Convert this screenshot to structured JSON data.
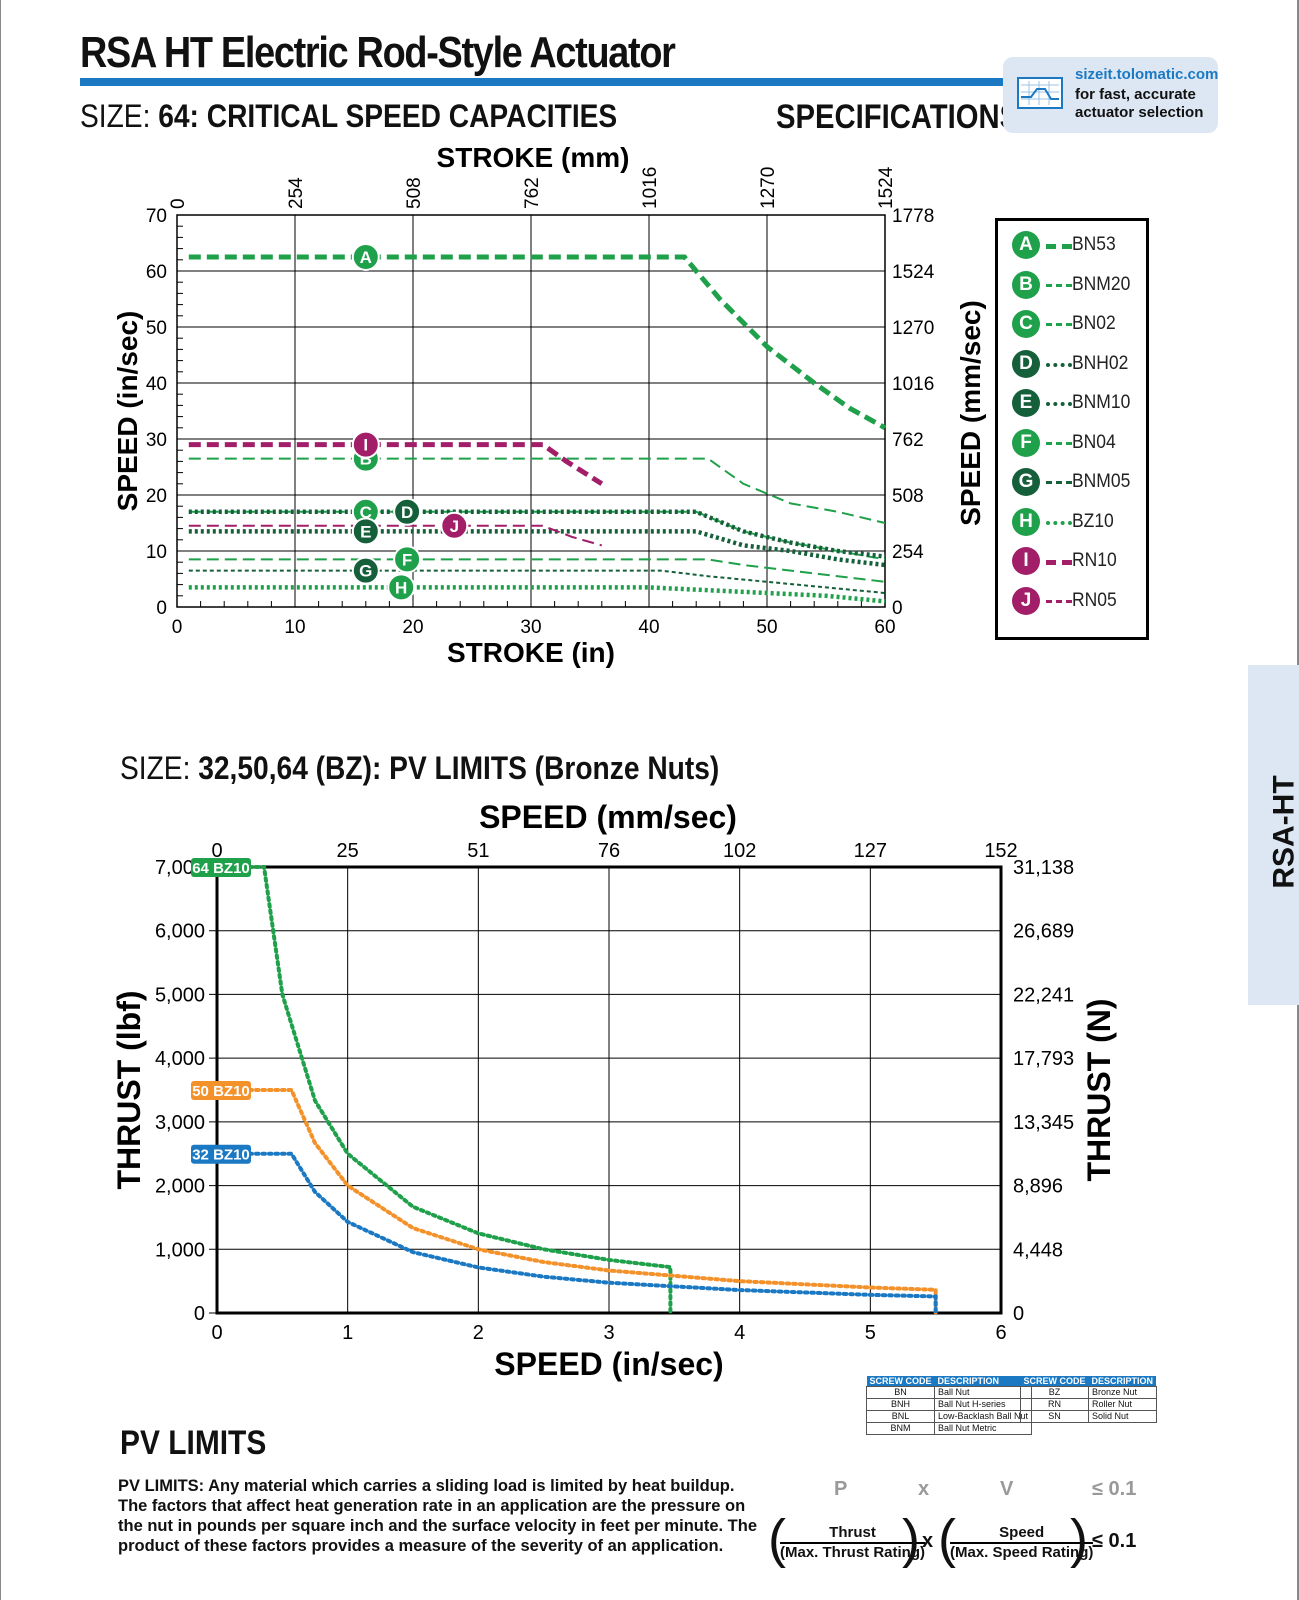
{
  "header": {
    "title": "RSA HT Electric Rod-Style Actuator",
    "section1_prefix": "SIZE:",
    "section1_title": "64: CRITICAL SPEED CAPACITIES",
    "specifications": "SPECIFICATIONS",
    "badge_url": "sizeit.tolomatic.com",
    "badge_line2": "for fast, accurate",
    "badge_line3": "actuator selection",
    "side_tab": "RSA-HT",
    "accent_color": "#1b79c4"
  },
  "chart_data": [
    {
      "type": "line",
      "title": "",
      "xlabel": "STROKE (in)",
      "x2label": "STROKE (mm)",
      "ylabel": "SPEED (in/sec)",
      "y2label": "SPEED (mm/sec)",
      "xlim": [
        0,
        60
      ],
      "ylim": [
        0,
        70
      ],
      "x_ticks": [
        0,
        10,
        20,
        30,
        40,
        50,
        60
      ],
      "y_ticks": [
        0,
        10,
        20,
        30,
        40,
        50,
        60,
        70
      ],
      "x2_ticks": [
        "0",
        "254",
        "508",
        "762",
        "1016",
        "1270",
        "1524"
      ],
      "y2_ticks": [
        "0",
        "254",
        "508",
        "762",
        "1016",
        "1270",
        "1524",
        "1778"
      ],
      "grid": true,
      "legend_position": "right",
      "series": [
        {
          "key": "A",
          "name": "BN53",
          "color": "#1fa04a",
          "style": "bold-dash",
          "label_x": 16,
          "x": [
            1,
            43,
            46,
            50,
            54,
            57,
            60
          ],
          "y": [
            62.5,
            62.5,
            55,
            46.5,
            40,
            35.5,
            32
          ]
        },
        {
          "key": "B",
          "name": "BNM20",
          "color": "#1fa04a",
          "style": "thin-dash",
          "label_x": 16,
          "x": [
            1,
            45,
            48,
            52,
            56,
            60
          ],
          "y": [
            26.5,
            26.5,
            22,
            18.5,
            17,
            15
          ]
        },
        {
          "key": "C",
          "name": "BN02",
          "color": "#1fa04a",
          "style": "thin-dash",
          "label_x": 16,
          "x": [
            1,
            44,
            48,
            52,
            56,
            60
          ],
          "y": [
            17,
            17,
            13.5,
            11.5,
            10,
            8.5
          ]
        },
        {
          "key": "D",
          "name": "BNH02",
          "color": "#15603a",
          "style": "dotted",
          "label_x": 19.5,
          "x": [
            1,
            44,
            48,
            52,
            56,
            60
          ],
          "y": [
            17,
            17,
            13.5,
            11.5,
            10,
            9
          ]
        },
        {
          "key": "E",
          "name": "BNM10",
          "color": "#15603a",
          "style": "dotted",
          "label_x": 16,
          "x": [
            1,
            44,
            48,
            52,
            56,
            60
          ],
          "y": [
            13.5,
            13.5,
            11,
            10,
            8.5,
            7.5
          ]
        },
        {
          "key": "F",
          "name": "BN04",
          "color": "#1fa04a",
          "style": "thin-dash",
          "label_x": 19.5,
          "x": [
            1,
            45,
            48,
            52,
            56,
            60
          ],
          "y": [
            8.5,
            8.5,
            7.5,
            6.5,
            5.5,
            4.5
          ]
        },
        {
          "key": "G",
          "name": "BNM05",
          "color": "#15603a",
          "style": "fine-dash",
          "label_x": 16,
          "x": [
            1,
            41,
            45,
            50,
            55,
            60
          ],
          "y": [
            6.5,
            6.5,
            5.5,
            4.5,
            3.5,
            2.5
          ]
        },
        {
          "key": "H",
          "name": "BZ10",
          "color": "#1fa04a",
          "style": "dotted",
          "label_x": 19,
          "x": [
            1,
            40,
            45,
            50,
            55,
            60
          ],
          "y": [
            3.5,
            3.5,
            3,
            2.5,
            2,
            1
          ]
        },
        {
          "key": "I",
          "name": "RN10",
          "color": "#a21e68",
          "style": "bold-dash",
          "label_x": 16,
          "x": [
            1,
            31,
            33,
            36
          ],
          "y": [
            29,
            29,
            26,
            22
          ]
        },
        {
          "key": "J",
          "name": "RN05",
          "color": "#a21e68",
          "style": "thin-dash",
          "label_x": 23.5,
          "x": [
            1,
            31,
            33.5,
            36
          ],
          "y": [
            14.5,
            14.5,
            12.5,
            11
          ]
        }
      ]
    },
    {
      "type": "line",
      "title": "",
      "xlabel": "SPEED (in/sec)",
      "x2label": "SPEED (mm/sec)",
      "ylabel": "THRUST (lbf)",
      "y2label": "THRUST (N)",
      "xlim": [
        0,
        6
      ],
      "ylim": [
        0,
        7000
      ],
      "x_ticks": [
        0,
        1,
        2,
        3,
        4,
        5,
        6
      ],
      "y_ticks": [
        "0",
        "1,000",
        "2,000",
        "3,000",
        "4,000",
        "5,000",
        "6,000",
        "7,000"
      ],
      "x2_ticks": [
        "0",
        "25",
        "51",
        "76",
        "102",
        "127",
        "152"
      ],
      "y2_ticks": [
        "0",
        "4,448",
        "8,896",
        "13,345",
        "17,793",
        "22,241",
        "26,689",
        "31,138"
      ],
      "grid": true,
      "series": [
        {
          "name": "64 BZ10",
          "color": "#1fa04a",
          "x": [
            0,
            0.36,
            0.5,
            0.75,
            1,
            1.5,
            2,
            2.5,
            3,
            3.47,
            3.47
          ],
          "y": [
            7000,
            7000,
            5000,
            3333,
            2500,
            1667,
            1250,
            1000,
            833,
            720,
            0
          ]
        },
        {
          "name": "50 BZ10",
          "color": "#f3922b",
          "x": [
            0,
            0.57,
            0.75,
            1,
            1.5,
            2,
            2.5,
            3,
            4,
            5,
            5.5,
            5.5
          ],
          "y": [
            3500,
            3500,
            2667,
            2000,
            1333,
            1000,
            800,
            667,
            500,
            400,
            364,
            0
          ]
        },
        {
          "name": "32 BZ10",
          "color": "#1b79c4",
          "x": [
            0,
            0.57,
            0.75,
            1,
            1.5,
            2,
            2.5,
            3,
            4,
            5,
            5.5,
            5.5
          ],
          "y": [
            2500,
            2500,
            1900,
            1430,
            955,
            715,
            570,
            475,
            360,
            285,
            260,
            0
          ]
        }
      ]
    }
  ],
  "pv_section": {
    "prefix": "SIZE:",
    "title": "32,50,64 (BZ): PV LIMITS (Bronze Nuts)",
    "heading": "PV LIMITS",
    "text": "PV LIMITS: Any material which carries a sliding load is limited by heat buildup. The factors that affect heat generation rate in an application are the pressure on the nut in pounds per square inch and the surface velocity in feet per minute. The product of these factors provides a measure of the severity of an application.",
    "formula_p": "P",
    "formula_x": "x",
    "formula_v": "V",
    "formula_le": "≤ 0.1",
    "thrust_num": "Thrust",
    "thrust_den": "(Max. Thrust Rating)",
    "speed_num": "Speed",
    "speed_den": "(Max. Speed Rating)",
    "times": "x",
    "le_bold": "≤ 0.1"
  },
  "screw_table_1": {
    "h1": "SCREW CODE",
    "h2": "DESCRIPTION",
    "rows": [
      [
        "BN",
        "Ball Nut"
      ],
      [
        "BNH",
        "Ball Nut H-series"
      ],
      [
        "BNL",
        "Low-Backlash Ball Nut"
      ],
      [
        "BNM",
        "Ball Nut Metric"
      ]
    ]
  },
  "screw_table_2": {
    "h1": "SCREW CODE",
    "h2": "DESCRIPTION",
    "rows": [
      [
        "BZ",
        "Bronze Nut"
      ],
      [
        "RN",
        "Roller Nut"
      ],
      [
        "SN",
        "Solid Nut"
      ]
    ]
  }
}
